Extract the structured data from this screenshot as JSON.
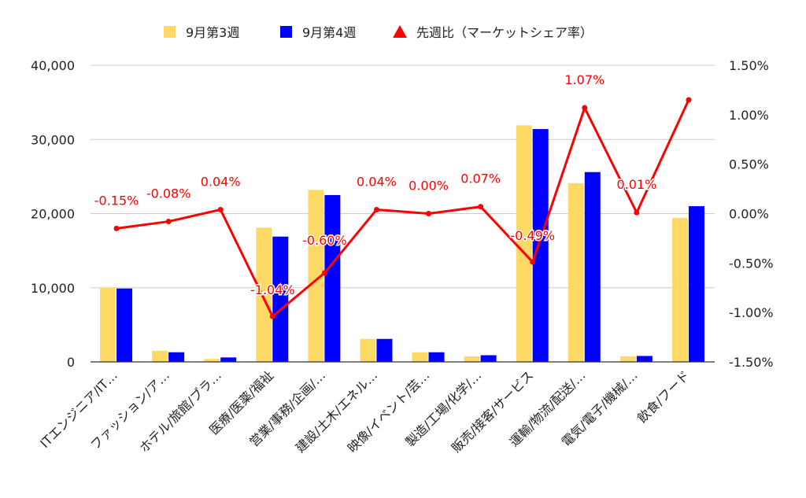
{
  "chart_data": {
    "type": "bar",
    "categories": [
      "ITエンジニア/IT…",
      "ファッション/ア…",
      "ホテル/旅館/ブラ…",
      "医療/医薬/福祉",
      "営業/事務/企画/…",
      "建設/土木/エネル…",
      "映像/イベント/芸…",
      "製造/工場/化学/…",
      "販売/接客/サービス",
      "運輸/物流/配送/…",
      "電気/電子/機械/…",
      "飲食/フード"
    ],
    "series": [
      {
        "name": "9月第3週",
        "type": "bar",
        "axis": "left",
        "color": "#ffd966",
        "values": [
          10000,
          1500,
          400,
          18100,
          23200,
          3100,
          1300,
          750,
          31900,
          24100,
          750,
          19400
        ]
      },
      {
        "name": "9月第4週",
        "type": "bar",
        "axis": "left",
        "color": "#0000ff",
        "values": [
          9900,
          1300,
          600,
          16900,
          22500,
          3100,
          1300,
          900,
          31400,
          25600,
          800,
          21000
        ]
      },
      {
        "name": "先週比（マーケットシェア率）",
        "type": "line",
        "axis": "right",
        "color": "#ff0000",
        "values": [
          -0.15,
          -0.08,
          0.04,
          -1.04,
          -0.6,
          0.04,
          0.0,
          0.07,
          -0.49,
          1.07,
          0.01,
          1.15
        ],
        "labels": [
          "-0.15%",
          "-0.08%",
          "0.04%",
          "-1.04%",
          "-0.60%",
          "0.04%",
          "0.00%",
          "0.07%",
          "-0.49%",
          "1.07%",
          "0.01%",
          null
        ]
      }
    ],
    "left_axis": {
      "ylim": [
        0,
        40000
      ],
      "ticks": [
        0,
        10000,
        20000,
        30000,
        40000
      ],
      "tick_labels": [
        "0",
        "10,000",
        "20,000",
        "30,000",
        "40,000"
      ]
    },
    "right_axis": {
      "ylim": [
        -1.5,
        1.5
      ],
      "ticks": [
        -1.5,
        -1.0,
        -0.5,
        0.0,
        0.5,
        1.0,
        1.5
      ],
      "tick_labels": [
        "-1.50%",
        "-1.00%",
        "-0.50%",
        "0.00%",
        "0.50%",
        "1.00%",
        "1.50%"
      ]
    },
    "grid": true,
    "legend_position": "top-center",
    "title": "",
    "xlabel": "",
    "ylabel": ""
  }
}
